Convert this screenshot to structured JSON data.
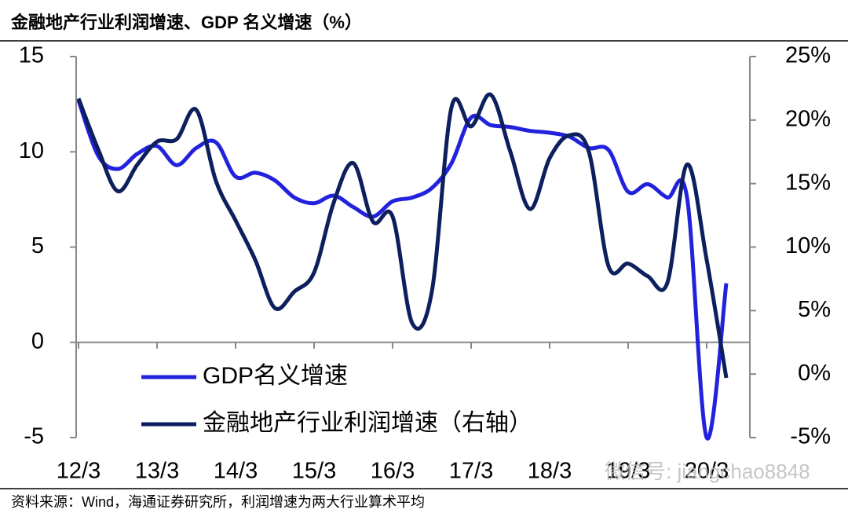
{
  "chart_data": {
    "type": "line",
    "title": "金融地产行业利润增速、GDP 名义增速（%）",
    "source": "资料来源：Wind，海通证券研究所，利润增速为两大行业算术平均",
    "watermark": "微信号: jiangchao8848",
    "categories": [
      "12/3",
      null,
      null,
      null,
      "13/3",
      null,
      null,
      null,
      "14/3",
      null,
      null,
      null,
      "15/3",
      null,
      null,
      null,
      "16/3",
      null,
      null,
      null,
      "17/3",
      null,
      null,
      null,
      "18/3",
      null,
      null,
      null,
      "19/3",
      null,
      null,
      null,
      "20/3",
      null
    ],
    "series": [
      {
        "name": "GDP名义增速",
        "color": "#2222dd",
        "values": [
          12.7,
          9.8,
          9.1,
          9.9,
          10.3,
          9.3,
          10.2,
          10.5,
          8.7,
          8.9,
          8.5,
          7.6,
          7.3,
          7.7,
          7.1,
          6.6,
          7.4,
          7.6,
          8.1,
          9.4,
          11.8,
          11.4,
          11.3,
          11.1,
          11.0,
          10.8,
          10.2,
          10.1,
          7.9,
          8.3,
          7.6,
          7.6,
          -5.0,
          3.1
        ]
      },
      {
        "name": "金融地产行业利润增速（右轴）",
        "color": "#0d1f5c",
        "axis": "y2",
        "values": [
          21.7,
          17.7,
          14.4,
          16.5,
          18.3,
          18.5,
          20.8,
          15.2,
          12.1,
          9.0,
          5.2,
          6.5,
          8.0,
          13.5,
          16.6,
          12.0,
          12.4,
          4.0,
          6.5,
          21.0,
          19.5,
          22.0,
          17.5,
          13.0,
          17.0,
          18.8,
          17.5,
          8.5,
          8.7,
          7.7,
          7.2,
          16.5,
          9.0,
          -0.3
        ]
      }
    ],
    "ylim": [
      -5,
      15
    ],
    "yticks": [
      -5,
      0,
      5,
      10,
      15
    ],
    "y2lim": [
      -5,
      25
    ],
    "y2ticks": [
      {
        "value": -5,
        "label": "-5%"
      },
      {
        "value": 0,
        "label": "0%"
      },
      {
        "value": 5,
        "label": "5%"
      },
      {
        "value": 10,
        "label": "10%"
      },
      {
        "value": 15,
        "label": "15%"
      },
      {
        "value": 20,
        "label": "20%"
      },
      {
        "value": 25,
        "label": "25%"
      }
    ],
    "legend": "lower left"
  }
}
